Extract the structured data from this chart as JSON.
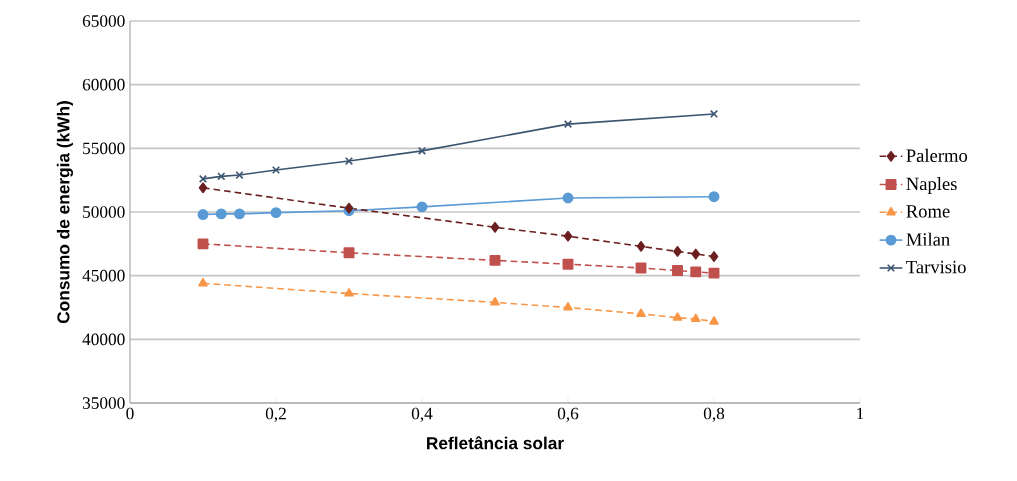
{
  "chart_data": {
    "type": "line",
    "xlabel": "Refletância solar",
    "ylabel": "Consumo de energia (kWh)",
    "xlim": [
      0,
      1
    ],
    "xticks": [
      0,
      {
        "value": 0.2,
        "label": "0,2"
      },
      {
        "value": 0.4,
        "label": "0,4"
      },
      {
        "value": 0.6,
        "label": "0,6"
      },
      {
        "value": 0.8,
        "label": "0,8"
      },
      1
    ],
    "ylim": [
      35000,
      65000
    ],
    "yticks": [
      35000,
      40000,
      45000,
      50000,
      55000,
      60000,
      65000
    ],
    "grid": "y",
    "legend": "right",
    "series": [
      {
        "name": "Palermo",
        "color": "#6b1f1f",
        "marker": "diamond",
        "line_style": "dashed",
        "x": [
          0.1,
          0.3,
          0.5,
          0.6,
          0.7,
          0.75,
          0.775,
          0.8
        ],
        "values": [
          51900,
          50300,
          48800,
          48100,
          47300,
          46900,
          46700,
          46500
        ]
      },
      {
        "name": "Naples",
        "color": "#c0504d",
        "marker": "square",
        "line_style": "dashed",
        "x": [
          0.1,
          0.3,
          0.5,
          0.6,
          0.7,
          0.75,
          0.775,
          0.8
        ],
        "values": [
          47500,
          46800,
          46200,
          45900,
          45600,
          45400,
          45300,
          45200
        ]
      },
      {
        "name": "Rome",
        "color": "#f79646",
        "marker": "triangle",
        "line_style": "dashed",
        "x": [
          0.1,
          0.3,
          0.5,
          0.6,
          0.7,
          0.75,
          0.775,
          0.8
        ],
        "values": [
          44400,
          43600,
          42900,
          42500,
          42000,
          41700,
          41600,
          41400
        ]
      },
      {
        "name": "Milan",
        "color": "#5b9bd5",
        "marker": "circle",
        "line_style": "solid",
        "x": [
          0.1,
          0.125,
          0.15,
          0.2,
          0.3,
          0.4,
          0.6,
          0.8
        ],
        "values": [
          49800,
          49850,
          49850,
          49950,
          50100,
          50400,
          51100,
          51200
        ]
      },
      {
        "name": "Tarvisio",
        "color": "#3b5570",
        "marker": "cross",
        "line_style": "solid",
        "x": [
          0.1,
          0.125,
          0.15,
          0.2,
          0.3,
          0.4,
          0.6,
          0.8
        ],
        "values": [
          52600,
          52800,
          52900,
          53300,
          54000,
          54800,
          56900,
          57700
        ]
      }
    ]
  }
}
